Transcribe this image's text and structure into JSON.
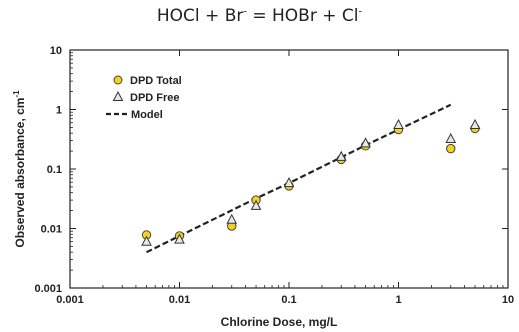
{
  "chart_data": {
    "type": "scatter",
    "title_parts": [
      "HOCl + Br",
      "-",
      " = HOBr + Cl",
      "-"
    ],
    "xlabel": "Chlorine Dose, mg/L",
    "ylabel": "Observed absorbance, cm",
    "ylabel_sup": "-1",
    "xscale": "log",
    "yscale": "log",
    "xlim": [
      0.001,
      10
    ],
    "ylim": [
      0.001,
      10
    ],
    "xticks": [
      "0.001",
      "0.01",
      "0.1",
      "1",
      "10"
    ],
    "yticks": [
      "0.001",
      "0.01",
      "0.1",
      "1",
      "10"
    ],
    "grid": false,
    "legend_position": "top-left",
    "series": [
      {
        "name": "DPD Total",
        "marker": "circle",
        "color": "#f2d31b",
        "x": [
          0.005,
          0.01,
          0.03,
          0.05,
          0.1,
          0.3,
          0.5,
          1,
          3,
          5
        ],
        "y": [
          0.0078,
          0.0075,
          0.011,
          0.03,
          0.052,
          0.145,
          0.245,
          0.46,
          0.22,
          0.48
        ]
      },
      {
        "name": "DPD Free",
        "marker": "triangle",
        "color": "#e8e8e8",
        "x": [
          0.005,
          0.01,
          0.03,
          0.05,
          0.1,
          0.3,
          0.5,
          1,
          3,
          5
        ],
        "y": [
          0.006,
          0.0065,
          0.014,
          0.024,
          0.058,
          0.16,
          0.27,
          0.55,
          0.32,
          0.55
        ]
      },
      {
        "name": "Model",
        "style": "dashed-line",
        "color": "#222222",
        "x": [
          0.005,
          0.05,
          0.1,
          0.5,
          3
        ],
        "y": [
          0.004,
          0.032,
          0.058,
          0.25,
          1.2
        ]
      }
    ]
  }
}
